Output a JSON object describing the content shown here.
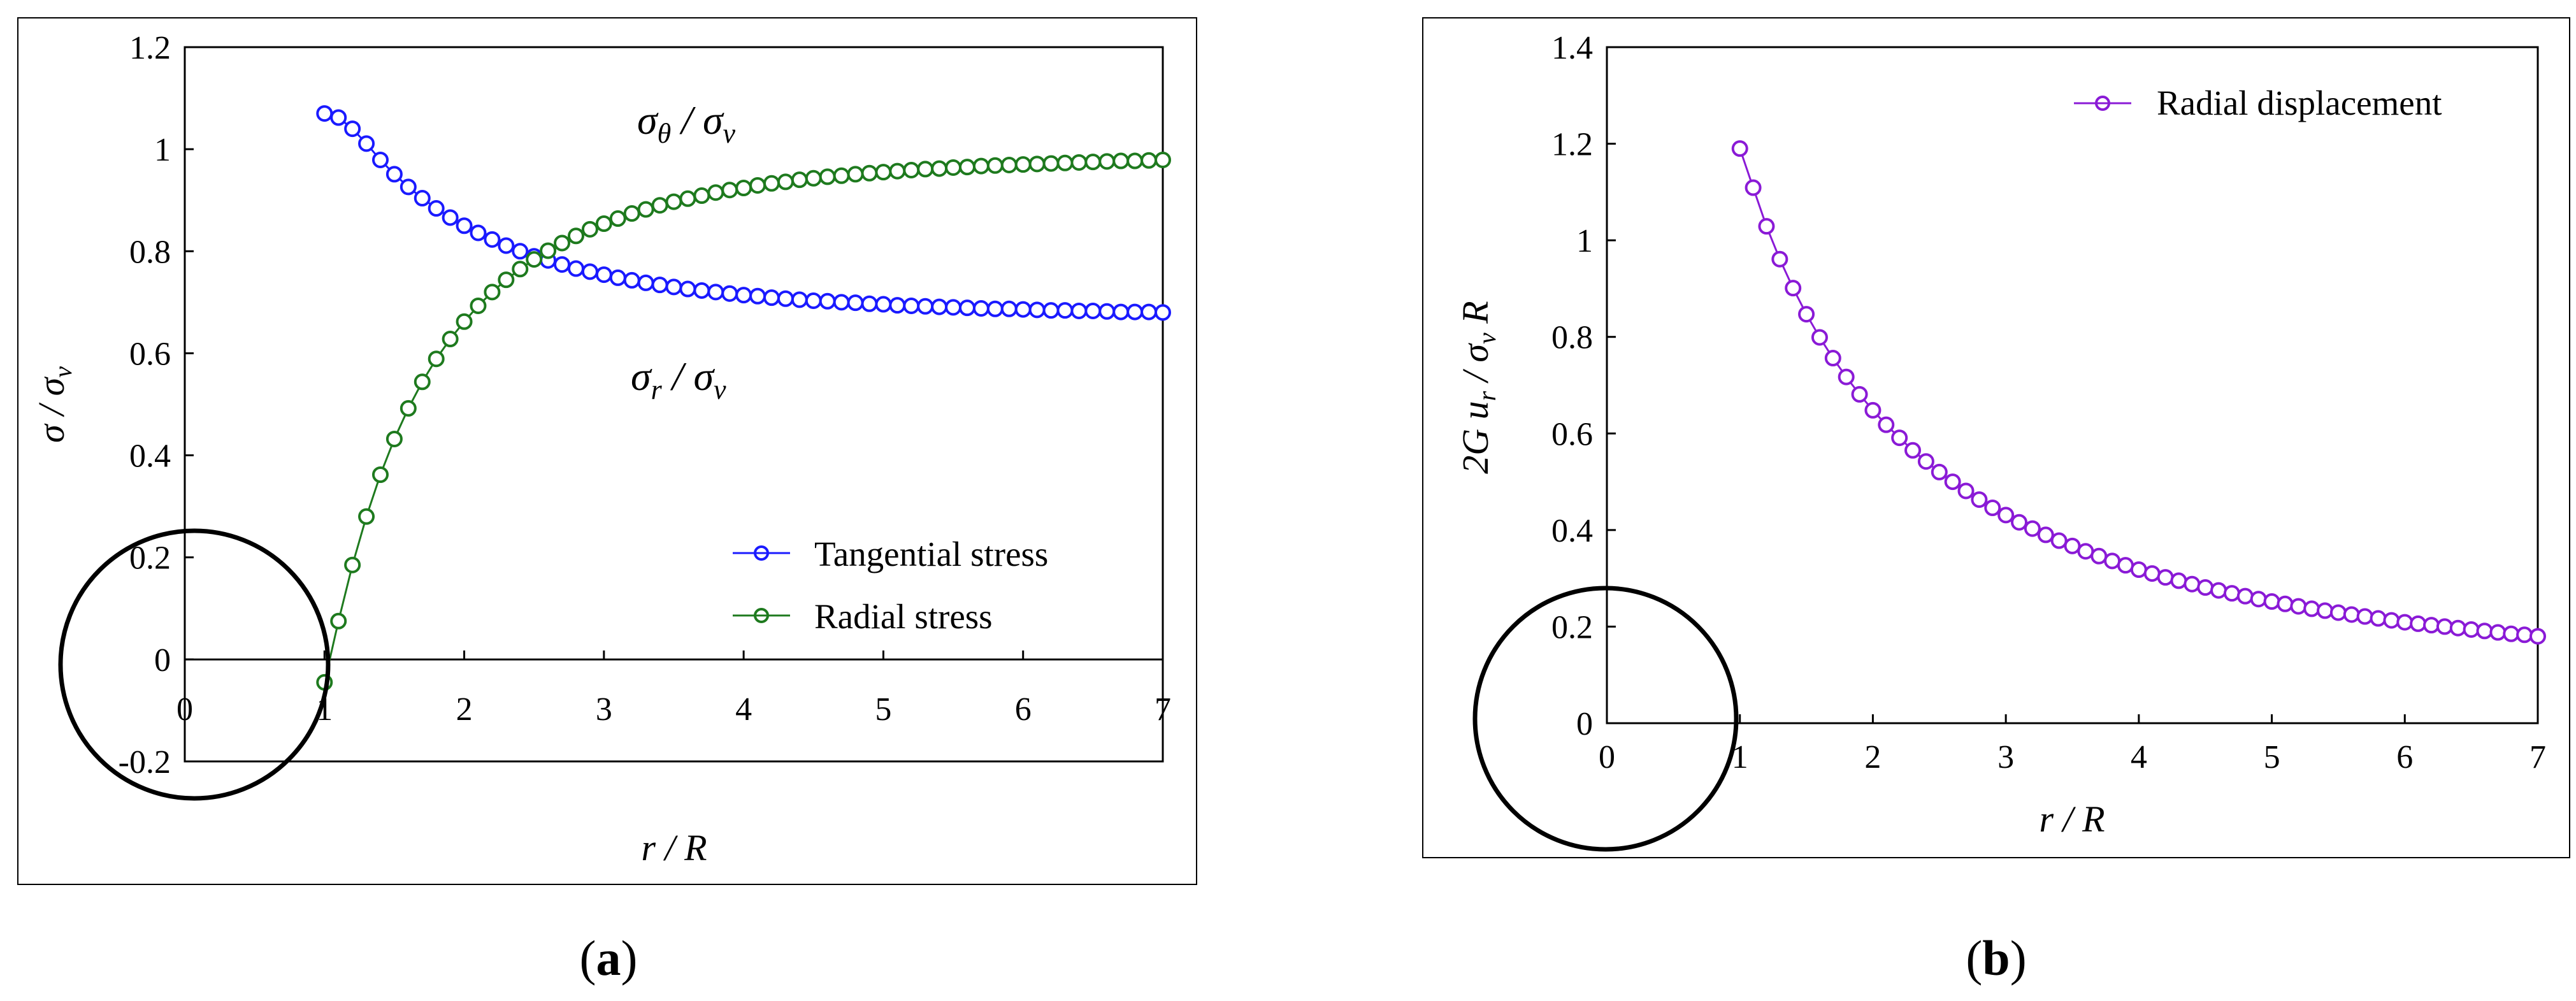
{
  "chart_data": [
    {
      "type": "line",
      "panel_caption": "(a)",
      "xlabel": "r / R",
      "ylabel": "σ / σv",
      "xlim": [
        0,
        7
      ],
      "ylim": [
        -0.2,
        1.2
      ],
      "x_ticks": [
        "0",
        "1",
        "2",
        "3",
        "4",
        "5",
        "6",
        "7"
      ],
      "y_ticks": [
        "-0.2",
        "0",
        "0.2",
        "0.4",
        "0.6",
        "0.8",
        "1",
        "1.2"
      ],
      "annotations": [
        "σθ / σv",
        "σr / σv"
      ],
      "legend_position": "lower-right",
      "grid": false,
      "x": [
        1.0,
        1.1,
        1.2,
        1.3,
        1.4,
        1.5,
        1.6,
        1.7,
        1.8,
        1.9,
        2.0,
        2.1,
        2.2,
        2.3,
        2.4,
        2.5,
        2.6,
        2.7,
        2.8,
        2.9,
        3.0,
        3.1,
        3.2,
        3.3,
        3.4,
        3.5,
        3.6,
        3.7,
        3.8,
        3.9,
        4.0,
        4.1,
        4.2,
        4.3,
        4.4,
        4.5,
        4.6,
        4.7,
        4.8,
        4.9,
        5.0,
        5.1,
        5.2,
        5.3,
        5.4,
        5.5,
        5.6,
        5.7,
        5.8,
        5.9,
        6.0,
        6.1,
        6.2,
        6.3,
        6.4,
        6.5,
        6.6,
        6.7,
        6.8,
        6.9,
        7.0
      ],
      "series": [
        {
          "name": "Tangential stress",
          "color": "#1a1aff",
          "values": [
            1.07,
            1.062,
            1.04,
            1.011,
            0.979,
            0.951,
            0.926,
            0.904,
            0.884,
            0.866,
            0.85,
            0.836,
            0.823,
            0.811,
            0.8,
            0.79,
            0.782,
            0.774,
            0.766,
            0.76,
            0.754,
            0.748,
            0.743,
            0.738,
            0.734,
            0.73,
            0.726,
            0.723,
            0.72,
            0.717,
            0.714,
            0.712,
            0.709,
            0.707,
            0.705,
            0.703,
            0.702,
            0.7,
            0.699,
            0.697,
            0.696,
            0.694,
            0.693,
            0.692,
            0.691,
            0.69,
            0.689,
            0.688,
            0.687,
            0.687,
            0.686,
            0.685,
            0.684,
            0.684,
            0.683,
            0.683,
            0.682,
            0.681,
            0.681,
            0.681,
            0.68
          ]
        },
        {
          "name": "Radial stress",
          "color": "#1e7a1e",
          "values": [
            -0.045,
            0.075,
            0.185,
            0.28,
            0.362,
            0.432,
            0.492,
            0.544,
            0.589,
            0.628,
            0.662,
            0.693,
            0.72,
            0.744,
            0.765,
            0.784,
            0.801,
            0.816,
            0.83,
            0.843,
            0.854,
            0.864,
            0.874,
            0.882,
            0.89,
            0.897,
            0.903,
            0.909,
            0.915,
            0.92,
            0.924,
            0.929,
            0.933,
            0.936,
            0.94,
            0.943,
            0.946,
            0.948,
            0.951,
            0.953,
            0.955,
            0.957,
            0.959,
            0.961,
            0.962,
            0.964,
            0.965,
            0.967,
            0.968,
            0.969,
            0.97,
            0.971,
            0.972,
            0.973,
            0.974,
            0.975,
            0.976,
            0.977,
            0.977,
            0.978,
            0.979
          ]
        }
      ]
    },
    {
      "type": "line",
      "panel_caption": "(b)",
      "xlabel": "r / R",
      "ylabel": "2G ur / σv R",
      "xlim": [
        0,
        7
      ],
      "ylim": [
        0,
        1.4
      ],
      "x_ticks": [
        "0",
        "1",
        "2",
        "3",
        "4",
        "5",
        "6",
        "7"
      ],
      "y_ticks": [
        "0",
        "0.2",
        "0.4",
        "0.6",
        "0.8",
        "1",
        "1.2",
        "1.4"
      ],
      "legend_position": "top-right",
      "grid": false,
      "x": [
        1.0,
        1.1,
        1.2,
        1.3,
        1.4,
        1.5,
        1.6,
        1.7,
        1.8,
        1.9,
        2.0,
        2.1,
        2.2,
        2.3,
        2.4,
        2.5,
        2.6,
        2.7,
        2.8,
        2.9,
        3.0,
        3.1,
        3.2,
        3.3,
        3.4,
        3.5,
        3.6,
        3.7,
        3.8,
        3.9,
        4.0,
        4.1,
        4.2,
        4.3,
        4.4,
        4.5,
        4.6,
        4.7,
        4.8,
        4.9,
        5.0,
        5.1,
        5.2,
        5.3,
        5.4,
        5.5,
        5.6,
        5.7,
        5.8,
        5.9,
        6.0,
        6.1,
        6.2,
        6.3,
        6.4,
        6.5,
        6.6,
        6.7,
        6.8,
        6.9,
        7.0
      ],
      "series": [
        {
          "name": "Radial displacement",
          "color": "#8a1ad6",
          "values": [
            1.19,
            1.109,
            1.029,
            0.961,
            0.901,
            0.847,
            0.799,
            0.756,
            0.717,
            0.681,
            0.648,
            0.618,
            0.591,
            0.565,
            0.542,
            0.52,
            0.5,
            0.481,
            0.463,
            0.446,
            0.431,
            0.416,
            0.403,
            0.39,
            0.378,
            0.367,
            0.356,
            0.346,
            0.336,
            0.327,
            0.318,
            0.31,
            0.302,
            0.295,
            0.288,
            0.281,
            0.275,
            0.269,
            0.263,
            0.257,
            0.252,
            0.247,
            0.242,
            0.237,
            0.233,
            0.229,
            0.225,
            0.221,
            0.217,
            0.213,
            0.209,
            0.206,
            0.203,
            0.2,
            0.197,
            0.194,
            0.191,
            0.188,
            0.185,
            0.183,
            0.18
          ]
        }
      ]
    }
  ]
}
